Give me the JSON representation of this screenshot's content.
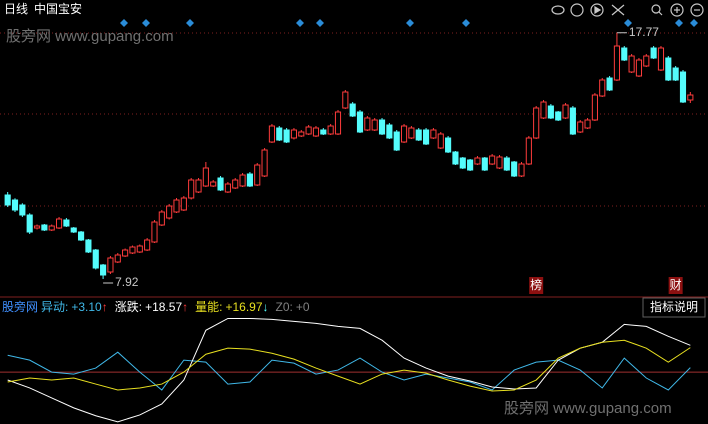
{
  "chart_data": {
    "type": "candlestick",
    "period": "日线",
    "title": "中国宝安",
    "watermark": "股旁网 www.gupang.com",
    "button": "指标说明",
    "up_color": "#ff3c3c",
    "down_color": "#54fcfc",
    "ylim": [
      7.24,
      18.28
    ],
    "open": [
      11.28,
      11.08,
      10.88,
      10.48,
      9.96,
      10.08,
      9.88,
      9.96,
      10.28,
      9.96,
      9.8,
      9.48,
      9.08,
      8.48,
      8.2,
      8.6,
      8.84,
      8.96,
      9.0,
      9.08,
      9.4,
      10.08,
      10.36,
      10.6,
      10.68,
      11.16,
      11.4,
      11.64,
      11.64,
      11.96,
      11.4,
      11.56,
      11.64,
      12.12,
      11.68,
      12.04,
      13.4,
      13.96,
      13.88,
      13.56,
      13.64,
      13.72,
      13.64,
      13.88,
      13.72,
      13.72,
      14.76,
      14.92,
      14.6,
      13.88,
      13.88,
      14.28,
      14.08,
      13.8,
      13.4,
      13.56,
      13.88,
      13.88,
      13.56,
      13.16,
      13.56,
      13.0,
      12.76,
      12.68,
      12.52,
      12.76,
      12.52,
      12.36,
      12.76,
      12.6,
      12.04,
      12.52,
      13.56,
      14.36,
      14.84,
      14.6,
      14.36,
      14.76,
      13.8,
      13.96,
      14.28,
      15.24,
      15.96,
      15.88,
      17.16,
      16.2,
      16.04,
      16.44,
      17.16,
      16.28,
      16.76,
      16.36,
      16.2,
      15.08
    ],
    "close": [
      10.88,
      10.68,
      10.48,
      9.8,
      10.04,
      9.88,
      10.04,
      10.32,
      10.04,
      9.8,
      9.48,
      9.0,
      8.36,
      8.08,
      8.76,
      8.88,
      9.08,
      9.2,
      9.24,
      9.48,
      10.2,
      10.6,
      10.84,
      11.08,
      11.16,
      11.88,
      11.88,
      12.36,
      11.8,
      11.48,
      11.72,
      11.88,
      12.08,
      11.64,
      12.48,
      13.08,
      14.04,
      13.48,
      13.4,
      13.88,
      13.8,
      14.0,
      13.96,
      13.72,
      14.04,
      14.6,
      15.4,
      14.44,
      13.8,
      14.36,
      14.28,
      13.72,
      13.56,
      13.08,
      14.04,
      13.96,
      13.48,
      13.32,
      13.88,
      13.72,
      13.0,
      12.52,
      12.36,
      12.28,
      12.76,
      12.28,
      12.84,
      12.8,
      12.28,
      12.04,
      12.52,
      13.56,
      14.76,
      15.0,
      14.36,
      14.28,
      14.88,
      13.72,
      14.2,
      14.28,
      15.28,
      15.88,
      15.48,
      17.24,
      16.68,
      16.84,
      16.68,
      16.84,
      16.76,
      17.16,
      15.88,
      15.88,
      15.0,
      15.28
    ],
    "high": [
      11.4,
      11.15,
      10.95,
      10.55,
      10.1,
      10.12,
      10.1,
      10.4,
      10.36,
      10.0,
      9.84,
      9.52,
      9.12,
      8.52,
      8.84,
      8.96,
      9.14,
      9.26,
      9.3,
      9.56,
      10.28,
      10.68,
      10.92,
      11.16,
      11.24,
      11.96,
      11.96,
      12.6,
      11.88,
      12.04,
      11.8,
      11.96,
      12.16,
      12.2,
      12.56,
      13.16,
      14.12,
      14.04,
      13.96,
      13.96,
      13.88,
      14.08,
      14.04,
      13.96,
      14.12,
      14.68,
      15.48,
      15.0,
      14.68,
      14.44,
      14.36,
      14.36,
      14.16,
      13.88,
      14.12,
      14.04,
      13.96,
      13.96,
      13.96,
      13.8,
      13.64,
      13.04,
      12.8,
      12.72,
      12.84,
      12.8,
      12.92,
      12.88,
      12.84,
      12.64,
      12.6,
      13.64,
      14.84,
      15.08,
      14.92,
      14.64,
      14.96,
      14.84,
      14.28,
      14.36,
      15.36,
      15.96,
      16.04,
      17.77,
      17.24,
      16.92,
      16.76,
      16.92,
      17.24,
      17.24,
      16.84,
      16.44,
      16.28,
      15.4
    ],
    "low": [
      10.8,
      10.6,
      10.4,
      9.72,
      9.9,
      9.84,
      9.84,
      9.92,
      10.0,
      9.76,
      9.44,
      8.96,
      8.3,
      7.92,
      8.12,
      8.56,
      8.8,
      8.92,
      8.96,
      9.04,
      9.36,
      10.04,
      10.3,
      10.56,
      10.64,
      11.1,
      11.36,
      11.6,
      11.6,
      11.44,
      11.36,
      11.52,
      11.6,
      11.6,
      11.64,
      12.0,
      13.36,
      13.44,
      13.36,
      13.5,
      13.6,
      13.68,
      13.6,
      13.68,
      13.68,
      13.68,
      14.72,
      14.4,
      13.76,
      13.84,
      13.84,
      13.68,
      13.52,
      13.04,
      13.36,
      13.52,
      13.44,
      13.28,
      13.52,
      13.12,
      12.96,
      12.48,
      12.32,
      12.24,
      12.48,
      12.24,
      12.48,
      12.32,
      12.24,
      12.0,
      12.0,
      12.48,
      13.52,
      14.32,
      14.32,
      14.24,
      14.32,
      13.68,
      13.76,
      13.92,
      14.24,
      15.2,
      15.44,
      15.84,
      16.64,
      16.16,
      16.0,
      16.4,
      16.72,
      16.24,
      15.84,
      15.84,
      14.96,
      14.96
    ],
    "annotations": [
      {
        "index": 83,
        "value": 17.77
      },
      {
        "index": 13,
        "value": 7.92
      }
    ],
    "markers": [
      {
        "index": 72,
        "label": "榜"
      },
      {
        "index": 91,
        "label": "财"
      }
    ],
    "indicator": {
      "name": "股旁网",
      "ylim": [
        -36,
        50
      ],
      "x": [
        0,
        3,
        6,
        9,
        12,
        15,
        18,
        21,
        24,
        27,
        30,
        33,
        36,
        39,
        42,
        45,
        48,
        51,
        54,
        57,
        60,
        63,
        66,
        69,
        72,
        75,
        78,
        81,
        84,
        87,
        90,
        93
      ],
      "series": [
        {
          "name": "异动:",
          "label": "+3.10",
          "arrow": "↑",
          "arrow_color": "#ff3c3c",
          "color": "#40b8e8",
          "values": [
            11.7,
            8.3,
            0,
            -1.4,
            2.8,
            13.8,
            0,
            -12.4,
            8.3,
            6.9,
            -8.3,
            -6.9,
            8.3,
            6.2,
            -1.4,
            1.4,
            9.7,
            0,
            -5.5,
            -1.4,
            -4.1,
            -6.9,
            -12.4,
            1.4,
            6.9,
            8.3,
            1.4,
            -11,
            9.7,
            -4.1,
            -12.4,
            3.1
          ]
        },
        {
          "name": "涨跌:",
          "label": "+18.57",
          "arrow": "↑",
          "arrow_color": "#ff3c3c",
          "color": "#ffffff",
          "values": [
            -5.5,
            -11,
            -17.9,
            -24.8,
            -30.3,
            -34.5,
            -29.7,
            -22.1,
            -5.5,
            29,
            37.2,
            37.2,
            36.6,
            35.2,
            33.8,
            31.7,
            30.3,
            22.1,
            9.7,
            2.8,
            -2.8,
            -6.2,
            -10.3,
            -11.7,
            -11,
            8.3,
            16.6,
            20.7,
            33.1,
            31.7,
            24.8,
            18.57
          ]
        },
        {
          "name": "量能:",
          "label": "+16.97",
          "arrow": "↓",
          "arrow_color": "#54fcfc",
          "color": "#e8e020",
          "values": [
            -6.9,
            -4.1,
            -5.5,
            -4.1,
            -8.3,
            -12.4,
            -11,
            -8.3,
            0,
            12.4,
            16.6,
            15.9,
            13.1,
            9,
            2.8,
            -2.8,
            -8.3,
            -1.4,
            1.4,
            -0.7,
            -5.5,
            -9.7,
            -13.1,
            -12.4,
            -5.5,
            9.7,
            16.6,
            20.7,
            22.1,
            16.6,
            6.9,
            16.97
          ]
        }
      ],
      "baseline": {
        "name": "Z0:",
        "label": "+0",
        "value": 0,
        "color": "#808080",
        "line_color": "#a03030"
      }
    }
  }
}
